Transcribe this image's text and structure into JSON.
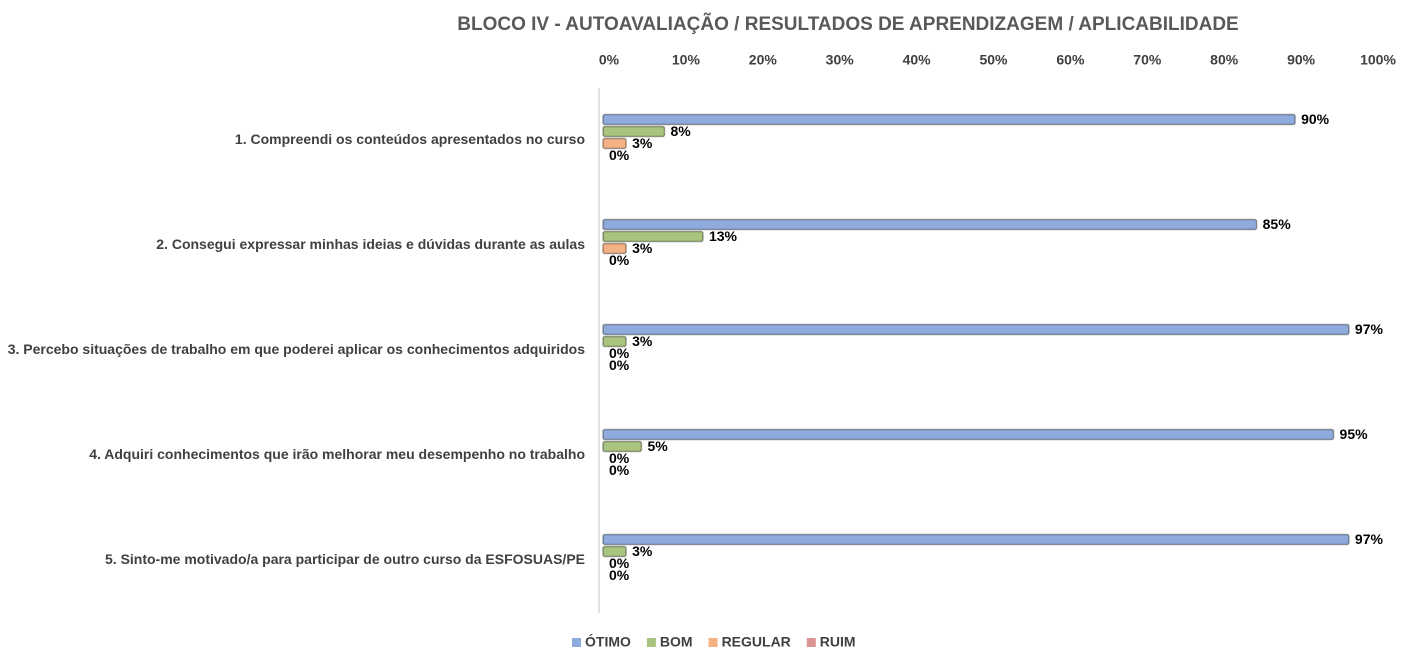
{
  "chart_data": {
    "type": "hbar",
    "title": "BLOCO IV - AUTOAVALIAÇÃO / RESULTADOS DE APRENDIZAGEM / APLICABILIDADE",
    "categories": [
      "1. Compreendi os conteúdos apresentados no curso",
      "2. Consegui expressar minhas ideias e dúvidas durante as aulas",
      "3. Percebo situações de trabalho em que poderei aplicar os conhecimentos adquiridos",
      "4. Adquiri conhecimentos que irão melhorar meu desempenho no trabalho",
      "5. Sinto-me motivado/a para participar de outro curso da ESFOSUAS/PE"
    ],
    "series": [
      {
        "name": "ÓTIMO",
        "color": "#8faadc",
        "values": [
          90,
          85,
          97,
          95,
          97
        ],
        "value_labels": [
          "90%",
          "85%",
          "97%",
          "95%",
          "97%"
        ]
      },
      {
        "name": "BOM",
        "color": "#a9c47f",
        "values": [
          8,
          13,
          3,
          5,
          3
        ],
        "value_labels": [
          "8%",
          "13%",
          "3%",
          "5%",
          "3%"
        ]
      },
      {
        "name": "REGULAR",
        "color": "#f4b183",
        "values": [
          3,
          3,
          0,
          0,
          0
        ],
        "value_labels": [
          "3%",
          "3%",
          "0%",
          "0%",
          "0%"
        ]
      },
      {
        "name": "RUIM",
        "color": "#d99694",
        "values": [
          0,
          0,
          0,
          0,
          0
        ],
        "value_labels": [
          "0%",
          "0%",
          "0%",
          "0%",
          "0%"
        ]
      }
    ],
    "xlim": [
      0,
      100
    ],
    "xticks": [
      {
        "value": 0,
        "label": "0%"
      },
      {
        "value": 10,
        "label": "10%"
      },
      {
        "value": 20,
        "label": "20%"
      },
      {
        "value": 30,
        "label": "30%"
      },
      {
        "value": 40,
        "label": "40%"
      },
      {
        "value": 50,
        "label": "50%"
      },
      {
        "value": 60,
        "label": "60%"
      },
      {
        "value": 70,
        "label": "70%"
      },
      {
        "value": 80,
        "label": "80%"
      },
      {
        "value": 90,
        "label": "90%"
      },
      {
        "value": 100,
        "label": "100%"
      }
    ],
    "legend": "bottom"
  }
}
